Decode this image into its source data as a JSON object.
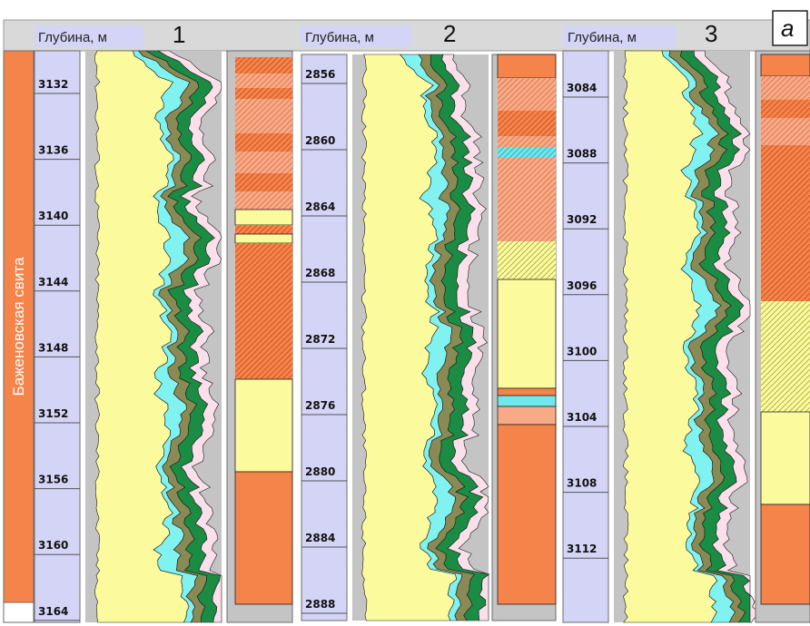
{
  "formation_label": "Баженовская свита",
  "panel_letter": "а",
  "colors": {
    "formation": "#f5844a",
    "depth_track": "#d4d4f7",
    "header_bar": "#d9d9d9",
    "curve_bg": "#c4c4c4",
    "yellow": "#fbfb9d",
    "cyan": "#80f2f0",
    "olive": "#8a8a55",
    "green": "#1b8c43",
    "pink": "#fbe0ec",
    "lith_orange": "#f5844a",
    "lith_light": "#f8aa86",
    "lith_yellow": "#fbfb9d",
    "lith_cyan": "#6fe8ec"
  },
  "wells": [
    {
      "number": "1",
      "depth_header": "Глубина, м",
      "depth_ticks": [
        "3132",
        "3136",
        "3140",
        "3144",
        "3148",
        "3152",
        "3156",
        "3160",
        "3164"
      ]
    },
    {
      "number": "2",
      "depth_header": "Глубина, м",
      "depth_ticks": [
        "2856",
        "2860",
        "2864",
        "2868",
        "2872",
        "2876",
        "2880",
        "2884",
        "2888"
      ]
    },
    {
      "number": "3",
      "depth_header": "Глубина, м",
      "depth_ticks": [
        "3084",
        "3088",
        "3092",
        "3096",
        "3100",
        "3104",
        "3108",
        "3112"
      ]
    }
  ]
}
